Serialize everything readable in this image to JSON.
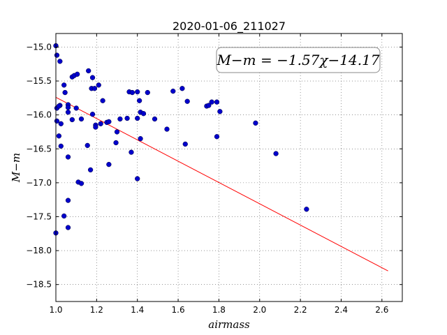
{
  "chart_data": {
    "type": "scatter",
    "title": "2020-01-06_211027",
    "xlabel": "airmass",
    "ylabel": "M−m",
    "xlim": [
      1.0,
      2.7
    ],
    "ylim": [
      -18.75,
      -14.8
    ],
    "ylim_inverted": true,
    "x_ticks": [
      1.0,
      1.2,
      1.4,
      1.6,
      1.8,
      2.0,
      2.2,
      2.4,
      2.6
    ],
    "x_tick_labels": [
      "1.0",
      "1.2",
      "1.4",
      "1.6",
      "1.8",
      "2.0",
      "2.2",
      "2.4",
      "2.6"
    ],
    "y_ticks": [
      -15.0,
      -15.5,
      -16.0,
      -16.5,
      -17.0,
      -17.5,
      -18.0,
      -18.5
    ],
    "y_tick_labels": [
      "−15.0",
      "−15.5",
      "−16.0",
      "−16.5",
      "−17.0",
      "−17.5",
      "−18.0",
      "−18.5"
    ],
    "grid": true,
    "annotation": "M−m = −1.57χ−14.17",
    "fit_line": {
      "slope": -1.57,
      "intercept": -14.17,
      "x_range": [
        1.0,
        2.63
      ],
      "color": "#ff0000"
    },
    "point_color": "#0000cc",
    "series": [
      {
        "points": [
          [
            1.0,
            -14.98
          ],
          [
            1.005,
            -15.12
          ],
          [
            1.02,
            -15.21
          ],
          [
            1.04,
            -15.56
          ],
          [
            1.045,
            -15.67
          ],
          [
            1.005,
            -15.9
          ],
          [
            1.02,
            -15.86
          ],
          [
            1.015,
            -15.87
          ],
          [
            1.005,
            -16.09
          ],
          [
            1.025,
            -16.13
          ],
          [
            1.015,
            -16.31
          ],
          [
            1.025,
            -16.46
          ],
          [
            1.06,
            -15.85
          ],
          [
            1.06,
            -15.89
          ],
          [
            1.06,
            -15.96
          ],
          [
            1.08,
            -15.44
          ],
          [
            1.09,
            -15.42
          ],
          [
            1.105,
            -15.4
          ],
          [
            1.08,
            -16.07
          ],
          [
            1.1,
            -15.9
          ],
          [
            1.125,
            -16.06
          ],
          [
            1.06,
            -16.62
          ],
          [
            1.11,
            -16.99
          ],
          [
            1.125,
            -17.01
          ],
          [
            1.06,
            -17.26
          ],
          [
            1.04,
            -17.49
          ],
          [
            1.06,
            -17.66
          ],
          [
            1.0,
            -17.74
          ],
          [
            1.16,
            -15.35
          ],
          [
            1.175,
            -15.61
          ],
          [
            1.18,
            -15.45
          ],
          [
            1.19,
            -15.61
          ],
          [
            1.21,
            -15.56
          ],
          [
            1.23,
            -15.79
          ],
          [
            1.18,
            -15.99
          ],
          [
            1.195,
            -16.15
          ],
          [
            1.195,
            -16.18
          ],
          [
            1.22,
            -16.13
          ],
          [
            1.25,
            -16.11
          ],
          [
            1.26,
            -16.1
          ],
          [
            1.155,
            -16.45
          ],
          [
            1.17,
            -16.81
          ],
          [
            1.26,
            -16.73
          ],
          [
            1.3,
            -16.25
          ],
          [
            1.295,
            -16.41
          ],
          [
            1.315,
            -16.06
          ],
          [
            1.35,
            -16.05
          ],
          [
            1.36,
            -15.66
          ],
          [
            1.375,
            -15.67
          ],
          [
            1.4,
            -15.66
          ],
          [
            1.41,
            -15.79
          ],
          [
            1.415,
            -15.96
          ],
          [
            1.43,
            -15.98
          ],
          [
            1.4,
            -16.05
          ],
          [
            1.415,
            -16.35
          ],
          [
            1.37,
            -16.55
          ],
          [
            1.4,
            -16.94
          ],
          [
            1.45,
            -15.67
          ],
          [
            1.485,
            -16.06
          ],
          [
            1.545,
            -16.21
          ],
          [
            1.575,
            -15.65
          ],
          [
            1.62,
            -15.61
          ],
          [
            1.645,
            -15.8
          ],
          [
            1.635,
            -16.43
          ],
          [
            1.74,
            -15.87
          ],
          [
            1.75,
            -15.86
          ],
          [
            1.765,
            -15.81
          ],
          [
            1.79,
            -15.81
          ],
          [
            1.805,
            -15.95
          ],
          [
            1.79,
            -16.32
          ],
          [
            1.98,
            -16.12
          ],
          [
            2.08,
            -16.57
          ],
          [
            2.23,
            -17.39
          ]
        ]
      }
    ]
  }
}
